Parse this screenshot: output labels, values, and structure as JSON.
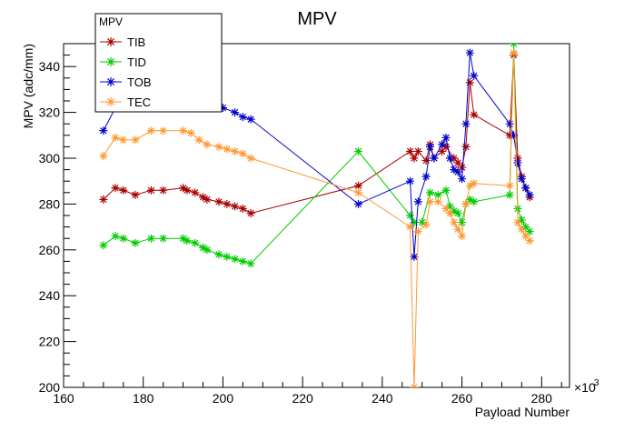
{
  "chart_data": {
    "type": "line",
    "title": "MPV",
    "xlabel": "Payload Number",
    "ylabel": "MPV (adc/mm)",
    "x_multiplier_label": "×10",
    "x_multiplier_exp": "3",
    "xlim": [
      160,
      287
    ],
    "ylim": [
      200,
      350
    ],
    "x_ticks": [
      160,
      180,
      200,
      220,
      240,
      260,
      280
    ],
    "y_ticks": [
      200,
      220,
      240,
      260,
      280,
      300,
      320,
      340
    ],
    "grid": false,
    "legend": {
      "title": "MPV",
      "placement": "top-left"
    },
    "series": [
      {
        "name": "TIB",
        "color": "#aa0000",
        "points": [
          [
            170,
            282
          ],
          [
            173,
            287
          ],
          [
            175,
            286
          ],
          [
            178,
            284
          ],
          [
            182,
            286
          ],
          [
            185,
            286
          ],
          [
            190,
            287
          ],
          [
            191,
            286
          ],
          [
            193,
            285
          ],
          [
            195,
            283
          ],
          [
            196,
            282
          ],
          [
            199,
            281
          ],
          [
            201,
            280
          ],
          [
            203,
            279
          ],
          [
            205,
            278
          ],
          [
            207,
            276
          ],
          [
            234,
            288
          ],
          [
            247,
            303
          ],
          [
            248,
            300
          ],
          [
            249,
            303
          ],
          [
            251,
            299
          ],
          [
            252,
            306
          ],
          [
            253,
            300
          ],
          [
            255,
            303
          ],
          [
            256,
            305
          ],
          [
            258,
            300
          ],
          [
            259,
            298
          ],
          [
            260,
            296
          ],
          [
            261,
            305
          ],
          [
            262,
            333
          ],
          [
            263,
            319
          ],
          [
            272,
            310
          ],
          [
            273,
            345
          ],
          [
            274,
            300
          ],
          [
            275,
            292
          ],
          [
            276,
            287
          ],
          [
            277,
            283
          ]
        ]
      },
      {
        "name": "TID",
        "color": "#00cc00",
        "points": [
          [
            170,
            262
          ],
          [
            173,
            266
          ],
          [
            175,
            265
          ],
          [
            178,
            263
          ],
          [
            182,
            265
          ],
          [
            185,
            265
          ],
          [
            190,
            265
          ],
          [
            191,
            264
          ],
          [
            193,
            263
          ],
          [
            195,
            261
          ],
          [
            196,
            260
          ],
          [
            199,
            258
          ],
          [
            201,
            257
          ],
          [
            203,
            256
          ],
          [
            205,
            255
          ],
          [
            207,
            254
          ],
          [
            234,
            303
          ],
          [
            247,
            275
          ],
          [
            248,
            272
          ],
          [
            250,
            272
          ],
          [
            252,
            285
          ],
          [
            254,
            284
          ],
          [
            256,
            286
          ],
          [
            257,
            279
          ],
          [
            258,
            277
          ],
          [
            259,
            276
          ],
          [
            260,
            272
          ],
          [
            261,
            280
          ],
          [
            262,
            282
          ],
          [
            263,
            281
          ],
          [
            272,
            284
          ],
          [
            273,
            350
          ],
          [
            274,
            278
          ],
          [
            275,
            273
          ],
          [
            276,
            270
          ],
          [
            277,
            268
          ]
        ]
      },
      {
        "name": "TOB",
        "color": "#0000cc",
        "points": [
          [
            170,
            312
          ],
          [
            173,
            322
          ],
          [
            175,
            322
          ],
          [
            177,
            323
          ],
          [
            182,
            326
          ],
          [
            185,
            325
          ],
          [
            190,
            326
          ],
          [
            192,
            325
          ],
          [
            195,
            323
          ],
          [
            198,
            322
          ],
          [
            200,
            322
          ],
          [
            203,
            320
          ],
          [
            205,
            318
          ],
          [
            207,
            317
          ],
          [
            234,
            280
          ],
          [
            247,
            290
          ],
          [
            248,
            257
          ],
          [
            249,
            281
          ],
          [
            251,
            292
          ],
          [
            252,
            305
          ],
          [
            253,
            300
          ],
          [
            255,
            306
          ],
          [
            256,
            309
          ],
          [
            257,
            300
          ],
          [
            258,
            295
          ],
          [
            259,
            294
          ],
          [
            260,
            291
          ],
          [
            261,
            315
          ],
          [
            262,
            346
          ],
          [
            263,
            336
          ],
          [
            272,
            315
          ],
          [
            273,
            310
          ],
          [
            274,
            298
          ],
          [
            275,
            291
          ],
          [
            276,
            287
          ],
          [
            277,
            284
          ]
        ]
      },
      {
        "name": "TEC",
        "color": "#ff9933",
        "points": [
          [
            170,
            301
          ],
          [
            173,
            309
          ],
          [
            175,
            308
          ],
          [
            178,
            308
          ],
          [
            182,
            312
          ],
          [
            185,
            312
          ],
          [
            190,
            312
          ],
          [
            192,
            311
          ],
          [
            194,
            308
          ],
          [
            196,
            306
          ],
          [
            199,
            305
          ],
          [
            201,
            304
          ],
          [
            203,
            303
          ],
          [
            205,
            302
          ],
          [
            207,
            300
          ],
          [
            234,
            285
          ],
          [
            247,
            270
          ],
          [
            248,
            200
          ],
          [
            249,
            268
          ],
          [
            251,
            271
          ],
          [
            252,
            281
          ],
          [
            254,
            281
          ],
          [
            256,
            278
          ],
          [
            257,
            276
          ],
          [
            258,
            272
          ],
          [
            259,
            269
          ],
          [
            260,
            266
          ],
          [
            261,
            280
          ],
          [
            262,
            288
          ],
          [
            263,
            289
          ],
          [
            272,
            288
          ],
          [
            273,
            346
          ],
          [
            274,
            272
          ],
          [
            275,
            269
          ],
          [
            276,
            266
          ],
          [
            277,
            264
          ]
        ]
      }
    ]
  }
}
